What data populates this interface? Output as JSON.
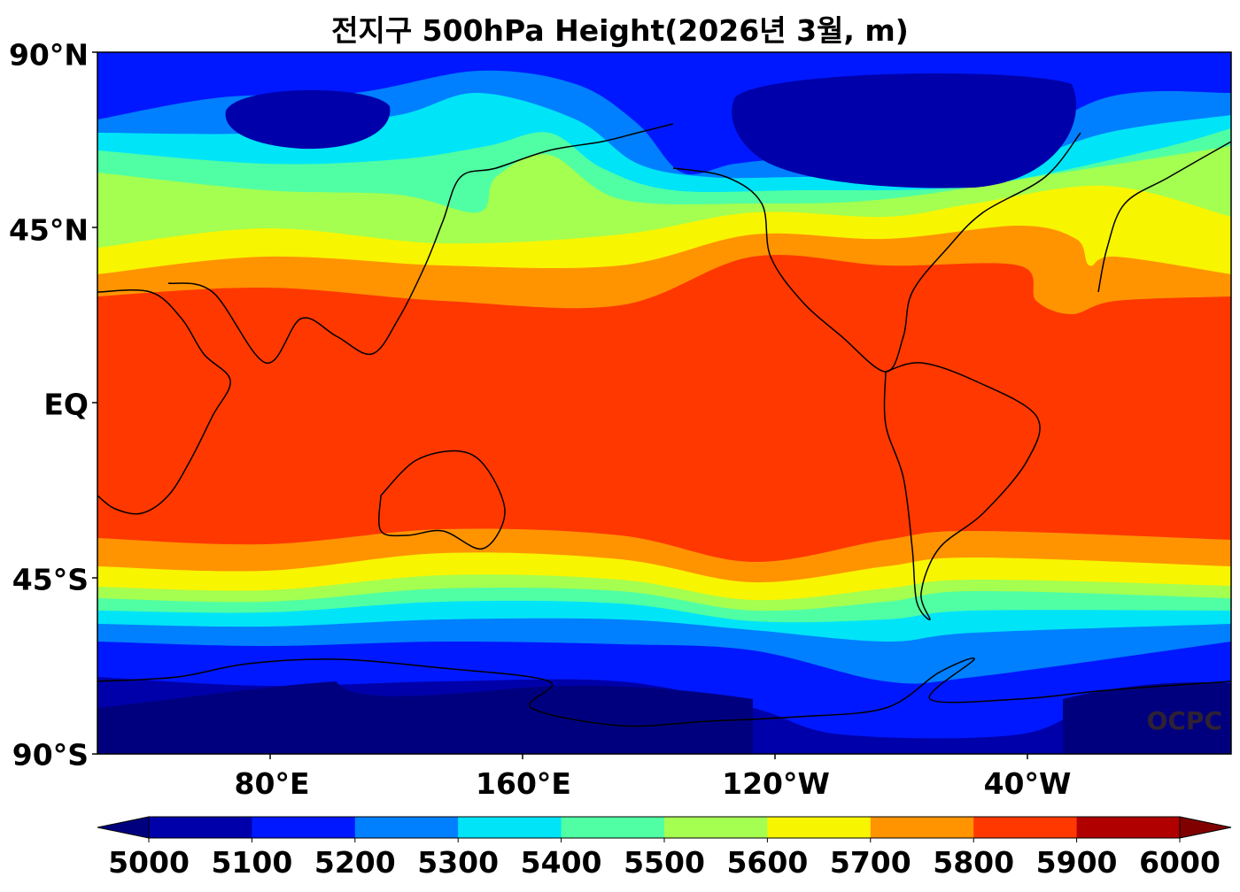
{
  "title": "전지구 500hPa Height(2026년 3월, m)",
  "watermark": "OCPC",
  "axes": {
    "y_ticks": [
      "90°N",
      "45°N",
      "EQ",
      "45°S",
      "90°S"
    ],
    "x_ticks": [
      "80°E",
      "160°E",
      "120°W",
      "40°W"
    ]
  },
  "colorbar": {
    "ticks": [
      "5000",
      "5100",
      "5200",
      "5300",
      "5400",
      "5500",
      "5600",
      "5700",
      "5800",
      "5900",
      "6000"
    ],
    "under_color": "#00007f",
    "over_color": "#800000",
    "colors": [
      "#0000aa",
      "#0018ff",
      "#0080ff",
      "#00e4f8",
      "#50ffa4",
      "#a4ff50",
      "#f8f500",
      "#ff9400",
      "#ff3800",
      "#b00000"
    ]
  }
}
